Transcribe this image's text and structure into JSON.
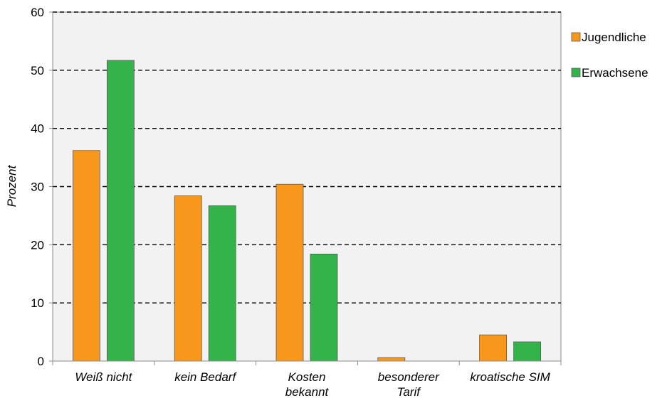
{
  "chart_data": {
    "type": "bar",
    "categories": [
      [
        "Weiß nicht"
      ],
      [
        "kein Bedarf"
      ],
      [
        "Kosten",
        "bekannt"
      ],
      [
        "besonderer",
        "Tarif"
      ],
      [
        "kroatische SIM"
      ]
    ],
    "series": [
      {
        "name": "Jugendliche",
        "color": "#F7981D",
        "values": [
          36.2,
          28.4,
          30.4,
          0.6,
          4.5
        ]
      },
      {
        "name": "Erwachsene",
        "color": "#33B34A",
        "values": [
          51.7,
          26.7,
          18.4,
          0,
          3.3
        ]
      }
    ],
    "ylabel": "Prozent",
    "xlabel": "",
    "ylim": [
      0,
      60
    ],
    "yticks": [
      0,
      10,
      20,
      30,
      40,
      50,
      60
    ],
    "grid": "dashed horizontal",
    "legend": "right",
    "plot_background": "#F2F2F2"
  }
}
